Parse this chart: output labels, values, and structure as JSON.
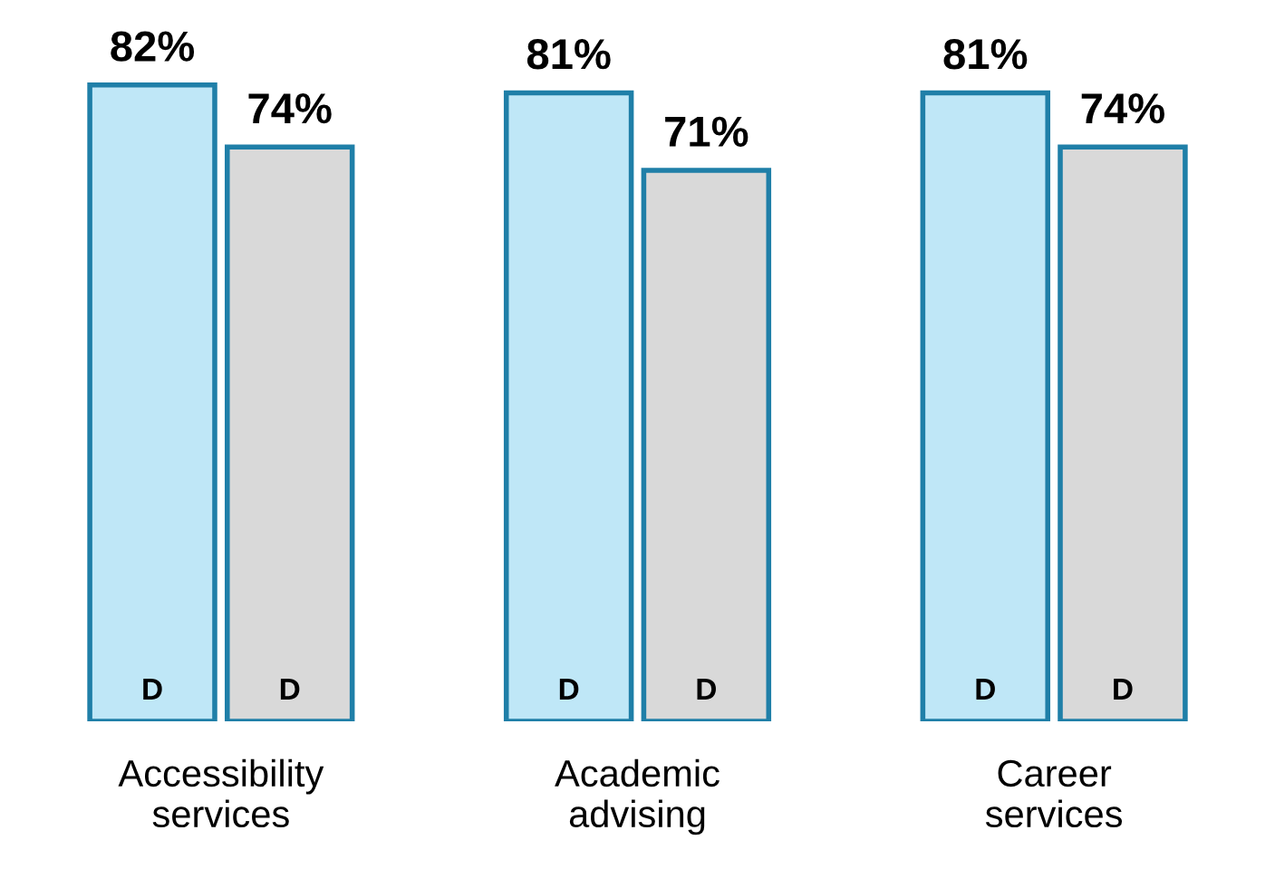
{
  "chart_data": {
    "type": "bar",
    "categories": [
      "Accessibility\nservices",
      "Academic\nadvising",
      "Career\nservices"
    ],
    "series": [
      {
        "color": "#bfe7f7",
        "values": [
          82,
          81,
          81
        ],
        "value_labels": [
          "82%",
          "81%",
          "81%"
        ]
      },
      {
        "color": "#d9d9d9",
        "values": [
          74,
          71,
          74
        ],
        "value_labels": [
          "74%",
          "71%",
          "74%"
        ]
      }
    ],
    "annotations": [
      "D",
      "D",
      "D",
      "D",
      "D",
      "D"
    ],
    "grid": false
  }
}
